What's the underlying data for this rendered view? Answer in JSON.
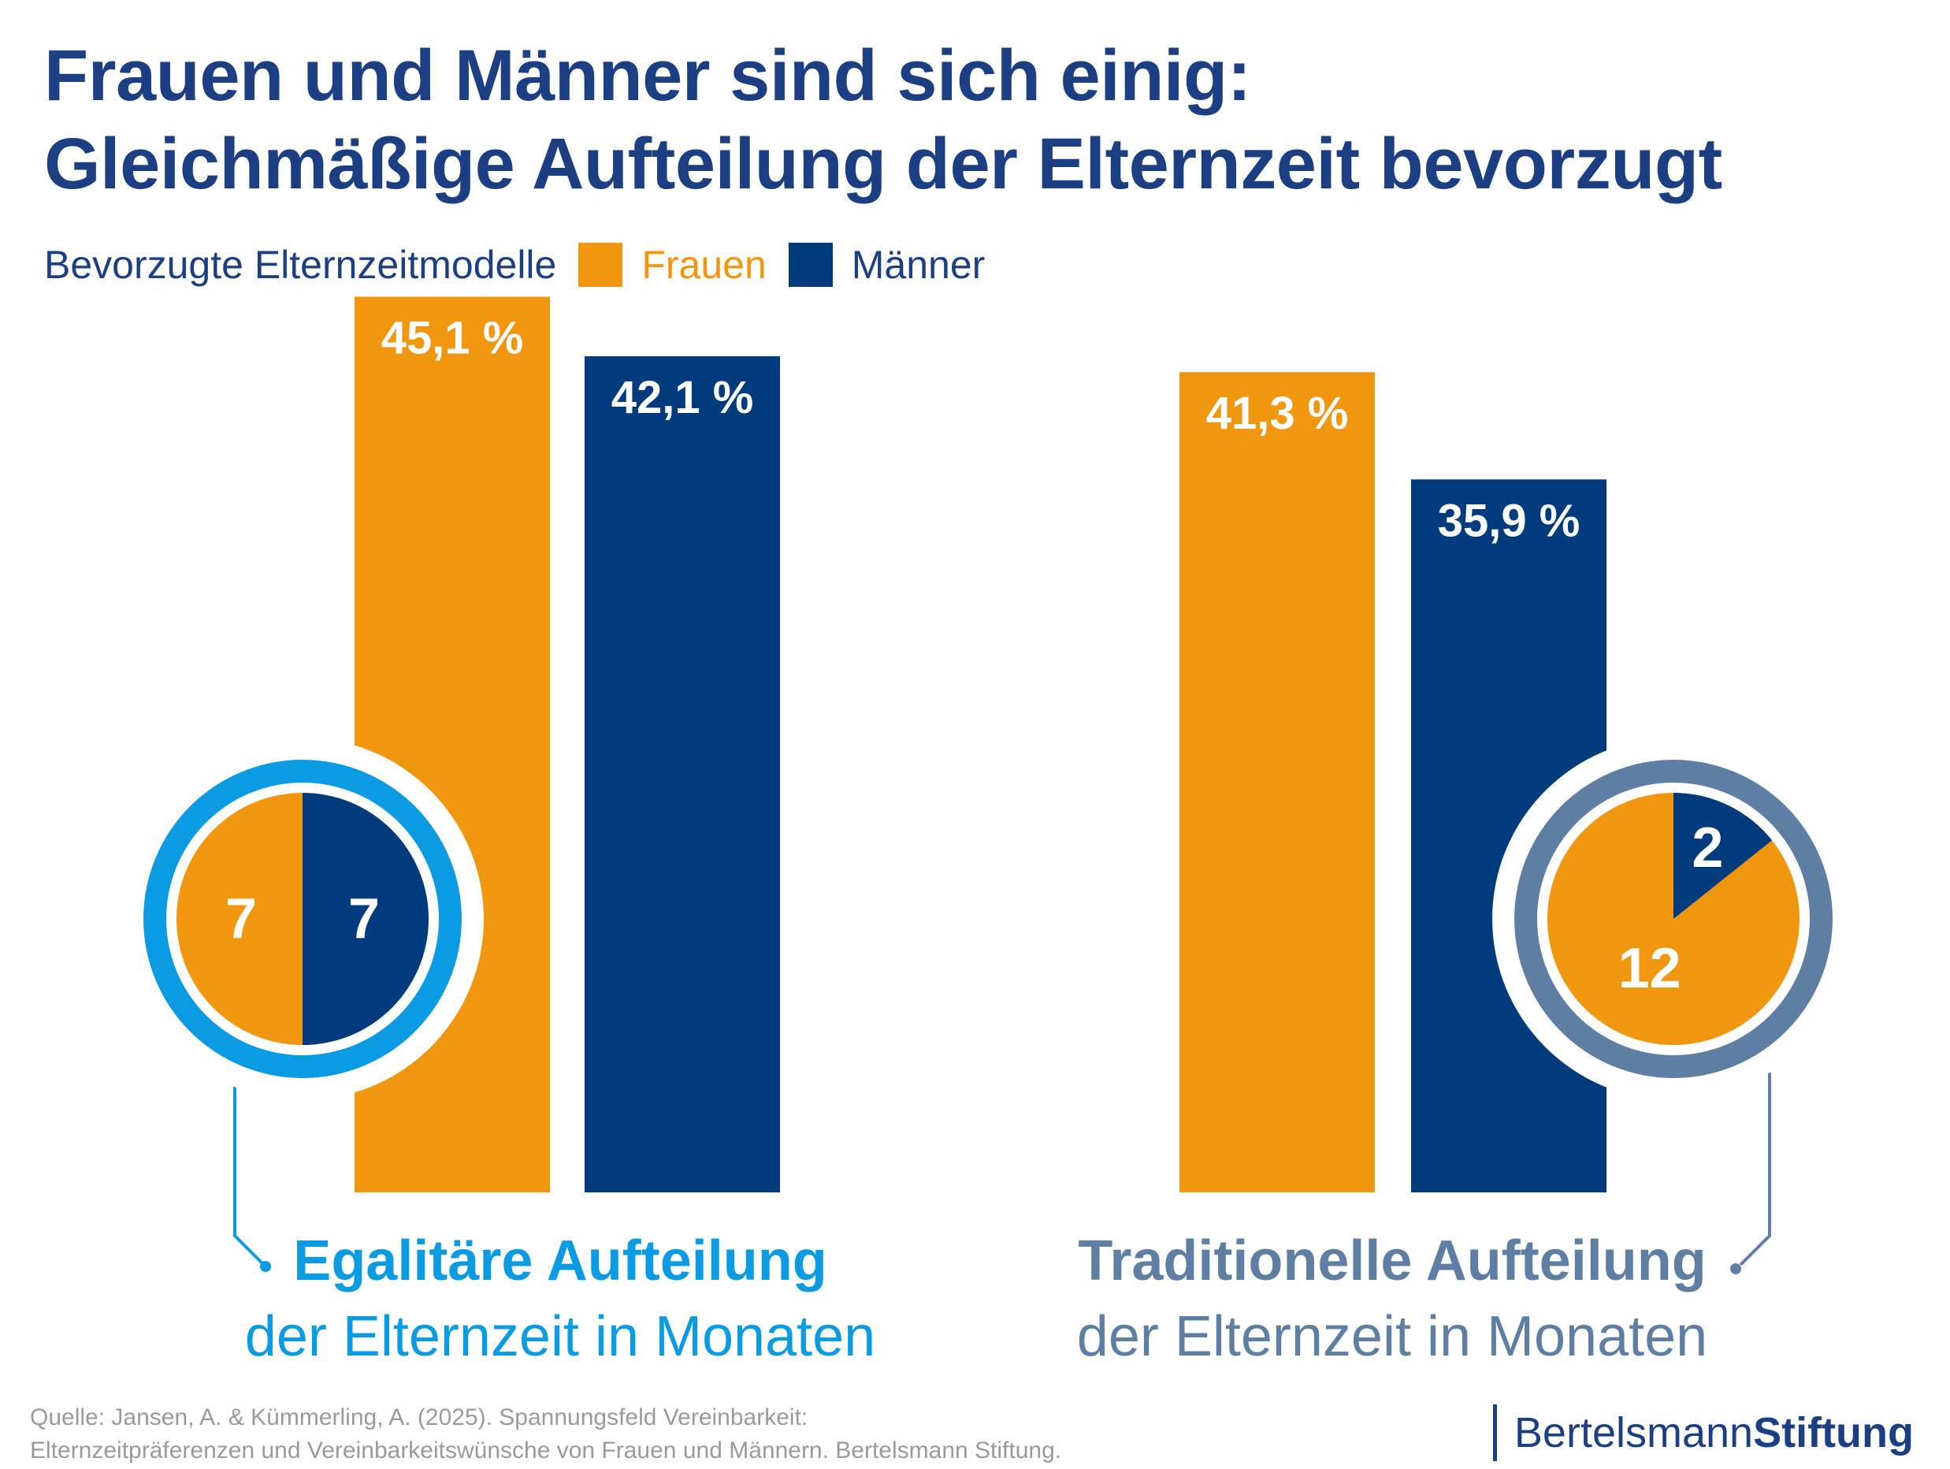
{
  "title": {
    "line1": "Frauen und Männer sind sich einig:",
    "line2": "Gleichmäßige Aufteilung der Elternzeit bevorzugt"
  },
  "legend": {
    "caption": "Bevorzugte Elternzeitmodelle",
    "women": "Frauen",
    "men": "Männer"
  },
  "colors": {
    "women": "#f0960f",
    "men": "#003c7d",
    "title": "#1c3f84",
    "egalitarian_accent": "#0b9be3",
    "traditional_accent": "#5e7fa3",
    "source": "#9a9a9a"
  },
  "chart_data": {
    "type": "bar",
    "title": "Bevorzugte Elternzeitmodelle",
    "series": [
      {
        "name": "Frauen",
        "values": [
          45.1,
          41.3
        ],
        "labels": [
          "45,1 %",
          "41,3 %"
        ]
      },
      {
        "name": "Männer",
        "values": [
          42.1,
          35.9
        ],
        "labels": [
          "42,1 %",
          "35,9 %"
        ]
      }
    ],
    "groups": [
      {
        "heading": "Egalitäre Aufteilung",
        "subheading": "der Elternzeit in Monaten",
        "months": {
          "women": 7,
          "men": 7
        },
        "month_labels": {
          "women": "7",
          "men": "7"
        }
      },
      {
        "heading": "Traditionelle Aufteilung",
        "subheading": "der Elternzeit in Monaten",
        "months": {
          "women": 12,
          "men": 2
        },
        "month_labels": {
          "women": "12",
          "men": "2"
        }
      }
    ],
    "unit": "%",
    "legend_position": "top-left"
  },
  "source": {
    "line1": "Quelle: Jansen, A. & Kümmerling, A. (2025). Spannungsfeld Vereinbarkeit:",
    "line2": "Elternzeitpräferenzen und Vereinbarkeitswünsche von Frauen und Männern. Bertelsmann Stiftung."
  },
  "brand": {
    "name_regular": "Bertelsmann",
    "name_bold": "Stiftung"
  }
}
